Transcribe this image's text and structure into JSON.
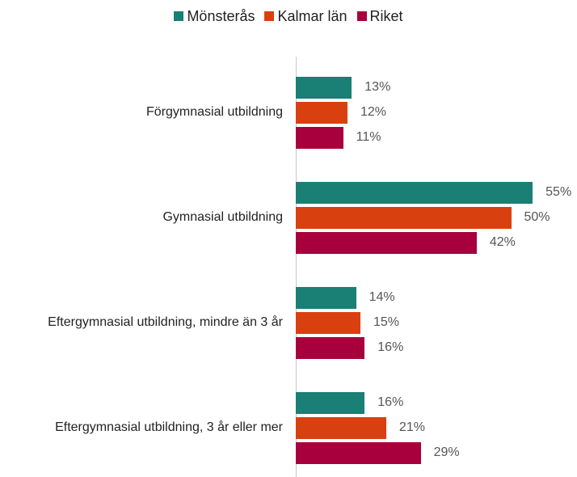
{
  "chart_data": {
    "type": "bar",
    "orientation": "horizontal",
    "categories": [
      "Förgymnasial utbildning",
      "Gymnasial utbildning",
      "Eftergymnasial utbildning, mindre än 3 år",
      "Eftergymnasial utbildning, 3 år eller mer"
    ],
    "series": [
      {
        "name": "Mönsterås",
        "color": "#1a7f74",
        "values": [
          13,
          55,
          14,
          16
        ],
        "value_labels": [
          "13%",
          "55%",
          "14%",
          "16%"
        ]
      },
      {
        "name": "Kalmar län",
        "color": "#d9400f",
        "values": [
          12,
          50,
          15,
          21
        ],
        "value_labels": [
          "12%",
          "50%",
          "15%",
          "21%"
        ]
      },
      {
        "name": "Riket",
        "color": "#a8003c",
        "values": [
          11,
          42,
          16,
          29
        ],
        "value_labels": [
          "11%",
          "42%",
          "16%",
          "29%"
        ]
      }
    ],
    "legend": "top"
  }
}
